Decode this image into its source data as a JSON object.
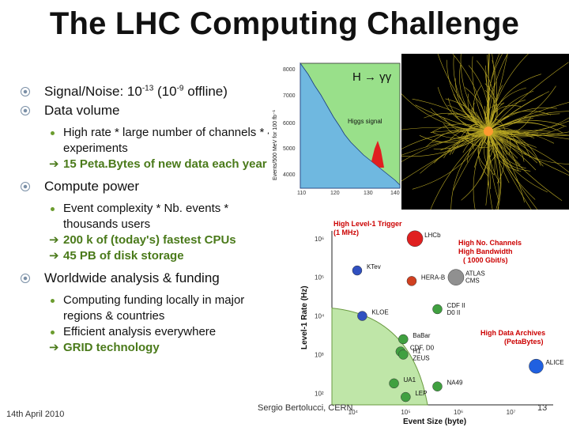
{
  "slide": {
    "title": "The LHC Computing Challenge",
    "date": "14th April 2010",
    "author": "Sergio Bertolucci, CERN",
    "page": "13"
  },
  "bullets": {
    "signal_prefix": "Signal/Noise: 10",
    "signal_exp1": "-13",
    "signal_mid": " (10",
    "signal_exp2": "-9",
    "signal_suffix": " offline)",
    "data_volume": "Data volume",
    "dv_sub1": "High rate * large number of channels * 4 experiments",
    "dv_arrow1": "15 Peta.Bytes of new data each year",
    "compute": "Compute power",
    "cp_sub1": "Event complexity * Nb. events * thousands users",
    "cp_arrow1": "200 k of (today's) fastest CPUs",
    "cp_arrow2": "45 PB of disk storage",
    "worldwide": "Worldwide analysis & funding",
    "wa_sub1": "Computing funding locally in major regions & countries",
    "wa_sub2": "Efficient analysis everywhere",
    "wa_arrow1": "GRID technology"
  },
  "higgs_plot": {
    "label": "H → γγ",
    "signal_label": "Higgs signal",
    "ylabel": "Events/500 MeV for 100 fb⁻¹",
    "y_ticks": [
      "8000",
      "7000",
      "6000",
      "5000",
      "4000"
    ],
    "x_ticks": [
      "110",
      "120",
      "130",
      "140"
    ]
  },
  "chart_data": {
    "type": "scatter",
    "title": "",
    "xlabel": "Event Size (byte)",
    "ylabel": "Level-1 Rate (Hz)",
    "x_scale": "log",
    "y_scale": "log",
    "x_ticks": [
      "10⁴",
      "10⁵",
      "10⁶",
      "10⁷"
    ],
    "y_ticks": [
      "10²",
      "10³",
      "10⁴",
      "10⁵",
      "10⁶"
    ],
    "annotations": [
      {
        "text": "High Level-1 Trigger",
        "color": "#cc0000"
      },
      {
        "text": "(1 MHz)",
        "color": "#cc0000"
      },
      {
        "text": "High No. Channels",
        "color": "#cc0000"
      },
      {
        "text": "High Bandwidth",
        "color": "#cc0000"
      },
      {
        "text": "( 1000 Gbit/s)",
        "color": "#cc0000"
      },
      {
        "text": "High Data Archives",
        "color": "#cc0000"
      },
      {
        "text": "(PetaBytes)",
        "color": "#cc0000"
      }
    ],
    "points": [
      {
        "label": "LHCb",
        "x": 150000.0,
        "y": 1000000.0,
        "color": "#e02020"
      },
      {
        "label": "KTev",
        "x": 12000.0,
        "y": 150000.0,
        "color": "#3050c0"
      },
      {
        "label": "HERA-B",
        "x": 130000.0,
        "y": 80000.0,
        "color": "#d04020"
      },
      {
        "label": "ATLAS CMS",
        "x": 900000.0,
        "y": 100000.0,
        "color": "#909090"
      },
      {
        "label": "KLOE",
        "x": 15000.0,
        "y": 10000.0,
        "color": "#3050c0"
      },
      {
        "label": "CDF II D0 II",
        "x": 400000.0,
        "y": 15000.0,
        "color": "#40a040"
      },
      {
        "label": "BaBar",
        "x": 90000.0,
        "y": 2500.0,
        "color": "#40a040"
      },
      {
        "label": "CDF, D0",
        "x": 80000.0,
        "y": 1200.0,
        "color": "#40a040"
      },
      {
        "label": "H1 ZEUS",
        "x": 90000.0,
        "y": 1000.0,
        "color": "#40a040"
      },
      {
        "label": "UA1",
        "x": 60000.0,
        "y": 180.0,
        "color": "#40a040"
      },
      {
        "label": "NA49",
        "x": 400000.0,
        "y": 150.0,
        "color": "#40a040"
      },
      {
        "label": "LEP",
        "x": 100000.0,
        "y": 80.0,
        "color": "#40a040"
      },
      {
        "label": "ALICE",
        "x": 30000000.0,
        "y": 500.0,
        "color": "#2060e0"
      }
    ]
  },
  "colors": {
    "arrow_text": "#4a7a1a",
    "bullet_ring": "#7a8fa6",
    "annotation": "#cc0000"
  }
}
